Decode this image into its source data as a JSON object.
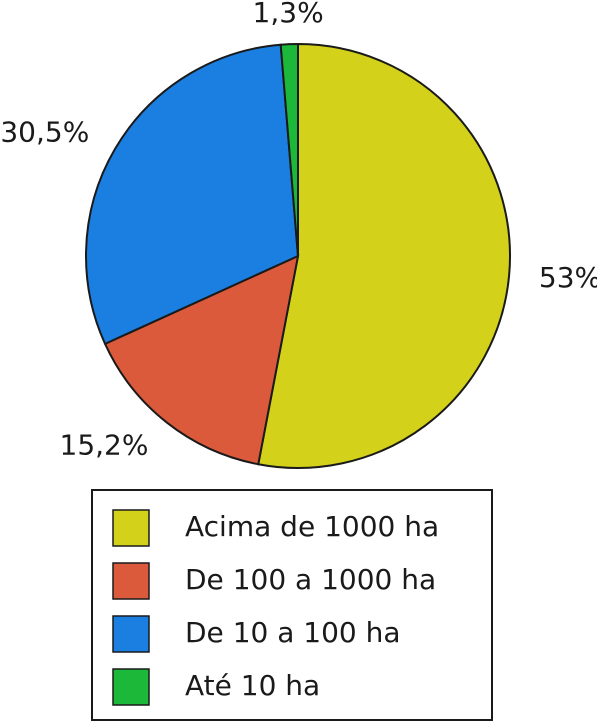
{
  "chart_data": {
    "type": "pie",
    "categories": [
      "Acima de 1000 ha",
      "De 100 a 1000 ha",
      "De 10 a 100 ha",
      "Até 10 ha"
    ],
    "values": [
      53,
      15.2,
      30.5,
      1.3
    ],
    "value_labels": [
      "53%",
      "15,2%",
      "30,5%",
      "1,3%"
    ],
    "colors": [
      "#d3d11a",
      "#db5a3b",
      "#1a7fe0",
      "#1cb83a"
    ],
    "legend": "bottom"
  }
}
